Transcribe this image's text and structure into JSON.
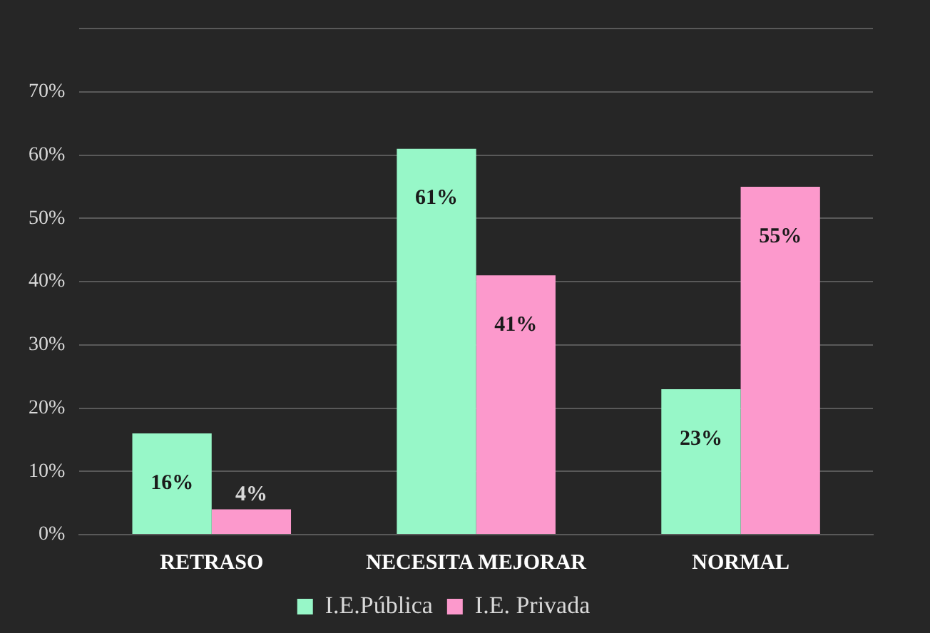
{
  "chart_data": {
    "type": "bar",
    "categories": [
      "RETRASO",
      "NECESITA MEJORAR",
      "NORMAL"
    ],
    "series": [
      {
        "name": "I.E.Pública",
        "color": "#97f7c8",
        "values": [
          16,
          61,
          23
        ],
        "value_labels": [
          "16%",
          "61%",
          "23%"
        ]
      },
      {
        "name": "I.E. Privada",
        "color": "#fc99cc",
        "values": [
          4,
          41,
          55
        ],
        "value_labels": [
          "4%",
          "41%",
          "55%"
        ]
      }
    ],
    "ylim": [
      0,
      80
    ],
    "yticks": [
      {
        "value": 0,
        "label": "0%"
      },
      {
        "value": 10,
        "label": "10%"
      },
      {
        "value": 20,
        "label": "20%"
      },
      {
        "value": 30,
        "label": "30%"
      },
      {
        "value": 40,
        "label": "40%"
      },
      {
        "value": 50,
        "label": "50%"
      },
      {
        "value": 60,
        "label": "60%"
      },
      {
        "value": 70,
        "label": "70%"
      },
      {
        "value": 80,
        "label": null
      }
    ],
    "grid": "y",
    "legend": "bottom"
  }
}
